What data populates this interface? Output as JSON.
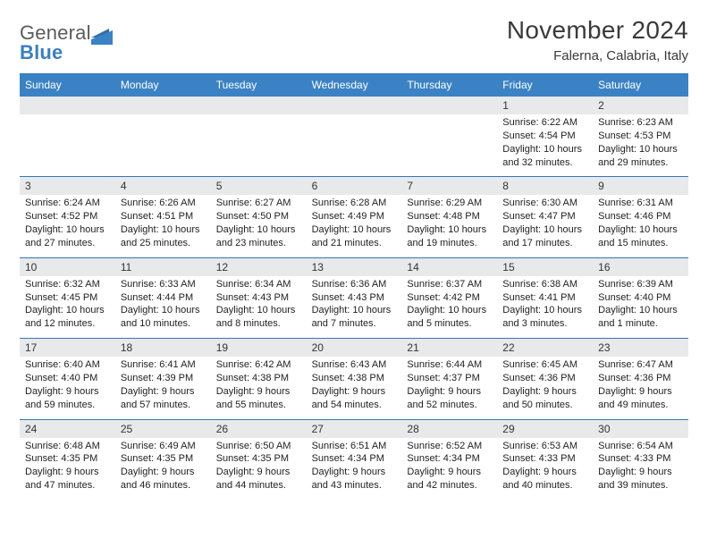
{
  "brand": {
    "line1": "General",
    "line2": "Blue"
  },
  "header": {
    "title": "November 2024",
    "subtitle": "Falerna, Calabria, Italy"
  },
  "style": {
    "accent": "#3b82c4",
    "accent_border": "#2f78bd",
    "band_bg": "#e8e9ea",
    "text": "#222222",
    "title_color": "#3a3a3a",
    "logo_gray": "#5b5b5b",
    "logo_blue": "#3b7fbf",
    "font_family": "Arial, Helvetica, sans-serif",
    "title_fontsize": 28,
    "subtitle_fontsize": 15,
    "weekday_fontsize": 12,
    "daynum_fontsize": 12,
    "detail_fontsize": 11
  },
  "weekdays": [
    "Sunday",
    "Monday",
    "Tuesday",
    "Wednesday",
    "Thursday",
    "Friday",
    "Saturday"
  ],
  "weeks": [
    [
      {
        "day": "",
        "sunrise": "",
        "sunset": "",
        "daylight": ""
      },
      {
        "day": "",
        "sunrise": "",
        "sunset": "",
        "daylight": ""
      },
      {
        "day": "",
        "sunrise": "",
        "sunset": "",
        "daylight": ""
      },
      {
        "day": "",
        "sunrise": "",
        "sunset": "",
        "daylight": ""
      },
      {
        "day": "",
        "sunrise": "",
        "sunset": "",
        "daylight": ""
      },
      {
        "day": "1",
        "sunrise": "Sunrise: 6:22 AM",
        "sunset": "Sunset: 4:54 PM",
        "daylight": "Daylight: 10 hours and 32 minutes."
      },
      {
        "day": "2",
        "sunrise": "Sunrise: 6:23 AM",
        "sunset": "Sunset: 4:53 PM",
        "daylight": "Daylight: 10 hours and 29 minutes."
      }
    ],
    [
      {
        "day": "3",
        "sunrise": "Sunrise: 6:24 AM",
        "sunset": "Sunset: 4:52 PM",
        "daylight": "Daylight: 10 hours and 27 minutes."
      },
      {
        "day": "4",
        "sunrise": "Sunrise: 6:26 AM",
        "sunset": "Sunset: 4:51 PM",
        "daylight": "Daylight: 10 hours and 25 minutes."
      },
      {
        "day": "5",
        "sunrise": "Sunrise: 6:27 AM",
        "sunset": "Sunset: 4:50 PM",
        "daylight": "Daylight: 10 hours and 23 minutes."
      },
      {
        "day": "6",
        "sunrise": "Sunrise: 6:28 AM",
        "sunset": "Sunset: 4:49 PM",
        "daylight": "Daylight: 10 hours and 21 minutes."
      },
      {
        "day": "7",
        "sunrise": "Sunrise: 6:29 AM",
        "sunset": "Sunset: 4:48 PM",
        "daylight": "Daylight: 10 hours and 19 minutes."
      },
      {
        "day": "8",
        "sunrise": "Sunrise: 6:30 AM",
        "sunset": "Sunset: 4:47 PM",
        "daylight": "Daylight: 10 hours and 17 minutes."
      },
      {
        "day": "9",
        "sunrise": "Sunrise: 6:31 AM",
        "sunset": "Sunset: 4:46 PM",
        "daylight": "Daylight: 10 hours and 15 minutes."
      }
    ],
    [
      {
        "day": "10",
        "sunrise": "Sunrise: 6:32 AM",
        "sunset": "Sunset: 4:45 PM",
        "daylight": "Daylight: 10 hours and 12 minutes."
      },
      {
        "day": "11",
        "sunrise": "Sunrise: 6:33 AM",
        "sunset": "Sunset: 4:44 PM",
        "daylight": "Daylight: 10 hours and 10 minutes."
      },
      {
        "day": "12",
        "sunrise": "Sunrise: 6:34 AM",
        "sunset": "Sunset: 4:43 PM",
        "daylight": "Daylight: 10 hours and 8 minutes."
      },
      {
        "day": "13",
        "sunrise": "Sunrise: 6:36 AM",
        "sunset": "Sunset: 4:43 PM",
        "daylight": "Daylight: 10 hours and 7 minutes."
      },
      {
        "day": "14",
        "sunrise": "Sunrise: 6:37 AM",
        "sunset": "Sunset: 4:42 PM",
        "daylight": "Daylight: 10 hours and 5 minutes."
      },
      {
        "day": "15",
        "sunrise": "Sunrise: 6:38 AM",
        "sunset": "Sunset: 4:41 PM",
        "daylight": "Daylight: 10 hours and 3 minutes."
      },
      {
        "day": "16",
        "sunrise": "Sunrise: 6:39 AM",
        "sunset": "Sunset: 4:40 PM",
        "daylight": "Daylight: 10 hours and 1 minute."
      }
    ],
    [
      {
        "day": "17",
        "sunrise": "Sunrise: 6:40 AM",
        "sunset": "Sunset: 4:40 PM",
        "daylight": "Daylight: 9 hours and 59 minutes."
      },
      {
        "day": "18",
        "sunrise": "Sunrise: 6:41 AM",
        "sunset": "Sunset: 4:39 PM",
        "daylight": "Daylight: 9 hours and 57 minutes."
      },
      {
        "day": "19",
        "sunrise": "Sunrise: 6:42 AM",
        "sunset": "Sunset: 4:38 PM",
        "daylight": "Daylight: 9 hours and 55 minutes."
      },
      {
        "day": "20",
        "sunrise": "Sunrise: 6:43 AM",
        "sunset": "Sunset: 4:38 PM",
        "daylight": "Daylight: 9 hours and 54 minutes."
      },
      {
        "day": "21",
        "sunrise": "Sunrise: 6:44 AM",
        "sunset": "Sunset: 4:37 PM",
        "daylight": "Daylight: 9 hours and 52 minutes."
      },
      {
        "day": "22",
        "sunrise": "Sunrise: 6:45 AM",
        "sunset": "Sunset: 4:36 PM",
        "daylight": "Daylight: 9 hours and 50 minutes."
      },
      {
        "day": "23",
        "sunrise": "Sunrise: 6:47 AM",
        "sunset": "Sunset: 4:36 PM",
        "daylight": "Daylight: 9 hours and 49 minutes."
      }
    ],
    [
      {
        "day": "24",
        "sunrise": "Sunrise: 6:48 AM",
        "sunset": "Sunset: 4:35 PM",
        "daylight": "Daylight: 9 hours and 47 minutes."
      },
      {
        "day": "25",
        "sunrise": "Sunrise: 6:49 AM",
        "sunset": "Sunset: 4:35 PM",
        "daylight": "Daylight: 9 hours and 46 minutes."
      },
      {
        "day": "26",
        "sunrise": "Sunrise: 6:50 AM",
        "sunset": "Sunset: 4:35 PM",
        "daylight": "Daylight: 9 hours and 44 minutes."
      },
      {
        "day": "27",
        "sunrise": "Sunrise: 6:51 AM",
        "sunset": "Sunset: 4:34 PM",
        "daylight": "Daylight: 9 hours and 43 minutes."
      },
      {
        "day": "28",
        "sunrise": "Sunrise: 6:52 AM",
        "sunset": "Sunset: 4:34 PM",
        "daylight": "Daylight: 9 hours and 42 minutes."
      },
      {
        "day": "29",
        "sunrise": "Sunrise: 6:53 AM",
        "sunset": "Sunset: 4:33 PM",
        "daylight": "Daylight: 9 hours and 40 minutes."
      },
      {
        "day": "30",
        "sunrise": "Sunrise: 6:54 AM",
        "sunset": "Sunset: 4:33 PM",
        "daylight": "Daylight: 9 hours and 39 minutes."
      }
    ]
  ]
}
